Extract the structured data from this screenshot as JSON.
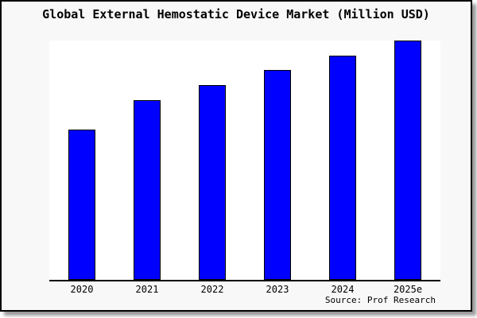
{
  "title": "Global External Hemostatic Device Market (Million USD)",
  "source_note": "Source: Prof Research",
  "colors": {
    "bar_fill": "#0000ff",
    "bar_border": "#000000",
    "frame_background": "#f8f8f8",
    "plot_background": "#ffffff",
    "axis_line": "#000000",
    "text": "#000000"
  },
  "chart_data": {
    "type": "bar",
    "title": "Global External Hemostatic Device Market (Million USD)",
    "categories": [
      "2020",
      "2021",
      "2022",
      "2023",
      "2024",
      "2025e"
    ],
    "values": [
      189,
      226,
      245,
      264,
      282,
      301
    ],
    "value_units": "relative (no value axis shown; values are measured bar heights in px)",
    "xlabel": "",
    "ylabel": "",
    "ylim": [
      0,
      301
    ],
    "value_axis_labeled": false,
    "grid": false,
    "legend_position": "none",
    "annotation": "Source: Prof Research"
  }
}
